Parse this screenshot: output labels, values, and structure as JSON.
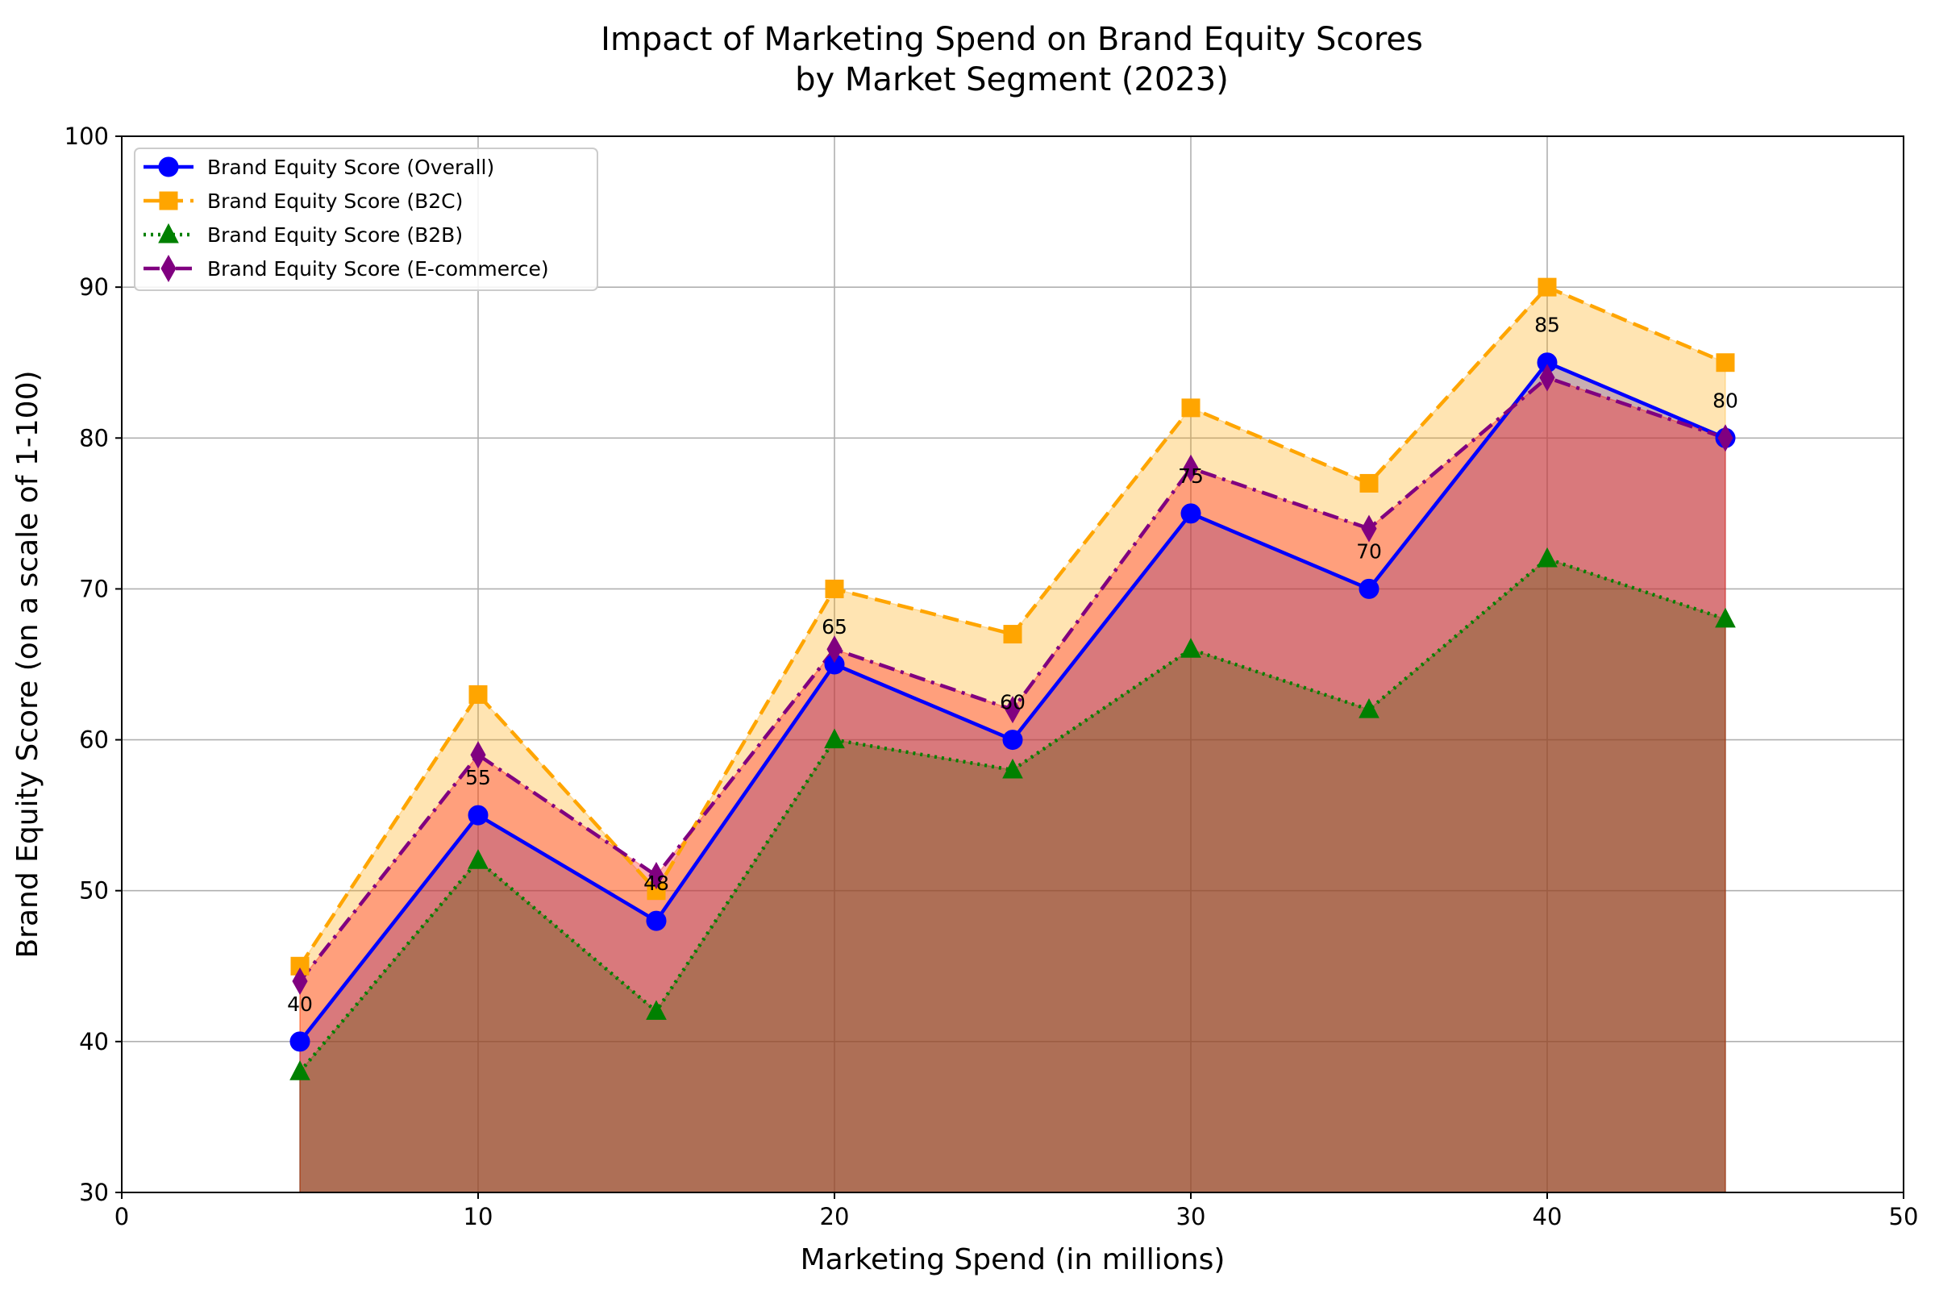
{
  "chart_data": {
    "type": "line",
    "title": "Impact of Marketing Spend on Brand Equity Scores",
    "subtitle": "by Market Segment (2023)",
    "xlabel": "Marketing Spend (in millions)",
    "ylabel": "Brand Equity Score (on a scale of 1-100)",
    "xlim": [
      0,
      50
    ],
    "ylim": [
      30,
      100
    ],
    "xticks": [
      0,
      10,
      20,
      30,
      40,
      50
    ],
    "yticks": [
      30,
      40,
      50,
      60,
      70,
      80,
      90,
      100
    ],
    "grid": true,
    "legend_position": "top-left",
    "x": [
      5,
      10,
      15,
      20,
      25,
      30,
      35,
      40,
      45
    ],
    "series": [
      {
        "name": "Brand Equity Score (Overall)",
        "values": [
          40,
          55,
          48,
          65,
          60,
          75,
          70,
          85,
          80
        ],
        "color": "#0000ff",
        "fill_color": "#0000ff",
        "marker": "circle",
        "line_style": "solid",
        "data_labels": true
      },
      {
        "name": "Brand Equity Score (B2C)",
        "values": [
          45,
          63,
          50,
          70,
          67,
          82,
          77,
          90,
          85
        ],
        "color": "#ffa500",
        "fill_color": "#ffa500",
        "marker": "square",
        "line_style": "dashed",
        "data_labels": false
      },
      {
        "name": "Brand Equity Score (B2B)",
        "values": [
          38,
          52,
          42,
          60,
          58,
          66,
          62,
          72,
          68
        ],
        "color": "#008000",
        "fill_color": "#008000",
        "marker": "triangle",
        "line_style": "dotted",
        "data_labels": false
      },
      {
        "name": "Brand Equity Score (E-commerce)",
        "values": [
          44,
          59,
          51,
          66,
          62,
          78,
          74,
          84,
          80
        ],
        "color": "#800080",
        "fill_color": "#ff0000",
        "marker": "diamond",
        "line_style": "dashdot",
        "data_labels": false
      }
    ]
  }
}
